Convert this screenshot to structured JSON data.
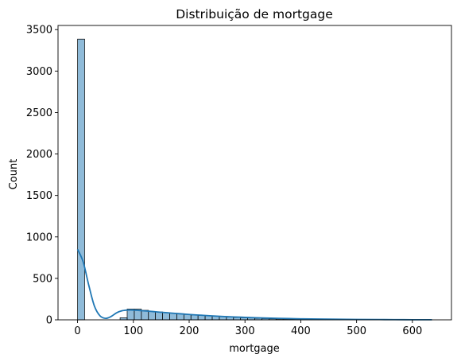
{
  "chart_data": {
    "type": "bar",
    "title": "Distribuição de mortgage",
    "xlabel": "mortgage",
    "ylabel": "Count",
    "xlim": [
      -35,
      670
    ],
    "ylim": [
      0,
      3550
    ],
    "xticks": [
      0,
      100,
      200,
      300,
      400,
      500,
      600
    ],
    "yticks": [
      0,
      500,
      1000,
      1500,
      2000,
      2500,
      3000,
      3500
    ],
    "grid": false,
    "legend": "none",
    "bar_color": "#1f77b4",
    "bar_fill_opacity": 0.5,
    "bin_edges": [
      0,
      12.7,
      25.4,
      38.1,
      50.8,
      63.5,
      76.2,
      88.9,
      101.6,
      114.3,
      127,
      139.7,
      152.4,
      165.1,
      177.8,
      190.5,
      203.2,
      215.9,
      228.6,
      241.3,
      254,
      266.7,
      279.4,
      292.1,
      304.8,
      317.5,
      330.2,
      342.9,
      355.6,
      368.3,
      381,
      393.7,
      406.4,
      419.1,
      431.8,
      444.5,
      457.2,
      469.9,
      482.6,
      495.3,
      508,
      520.7,
      533.4,
      546.1,
      558.8,
      571.5,
      584.2,
      596.9,
      609.6,
      622.3,
      635
    ],
    "counts": [
      3385,
      0,
      0,
      0,
      0,
      0,
      25,
      130,
      130,
      115,
      100,
      95,
      88,
      80,
      72,
      65,
      58,
      52,
      48,
      42,
      38,
      33,
      28,
      25,
      22,
      18,
      15,
      12,
      10,
      9,
      8,
      7,
      6,
      5,
      5,
      4,
      4,
      3,
      3,
      2,
      2,
      2,
      1,
      1,
      1,
      1,
      1,
      1,
      1,
      1
    ],
    "kde": {
      "x": [
        0,
        10,
        20,
        30,
        40,
        50,
        60,
        70,
        80,
        90,
        100,
        110,
        120,
        130,
        140,
        150,
        160,
        170,
        180,
        190,
        200,
        220,
        240,
        260,
        280,
        300,
        320,
        340,
        360,
        380,
        400,
        450,
        500,
        550,
        600,
        635
      ],
      "y": [
        850,
        700,
        420,
        170,
        50,
        18,
        40,
        85,
        110,
        118,
        118,
        113,
        108,
        103,
        97,
        91,
        86,
        80,
        75,
        70,
        65,
        56,
        48,
        41,
        35,
        30,
        25,
        21,
        18,
        15,
        12,
        8,
        5,
        3,
        1.5,
        1
      ]
    }
  }
}
